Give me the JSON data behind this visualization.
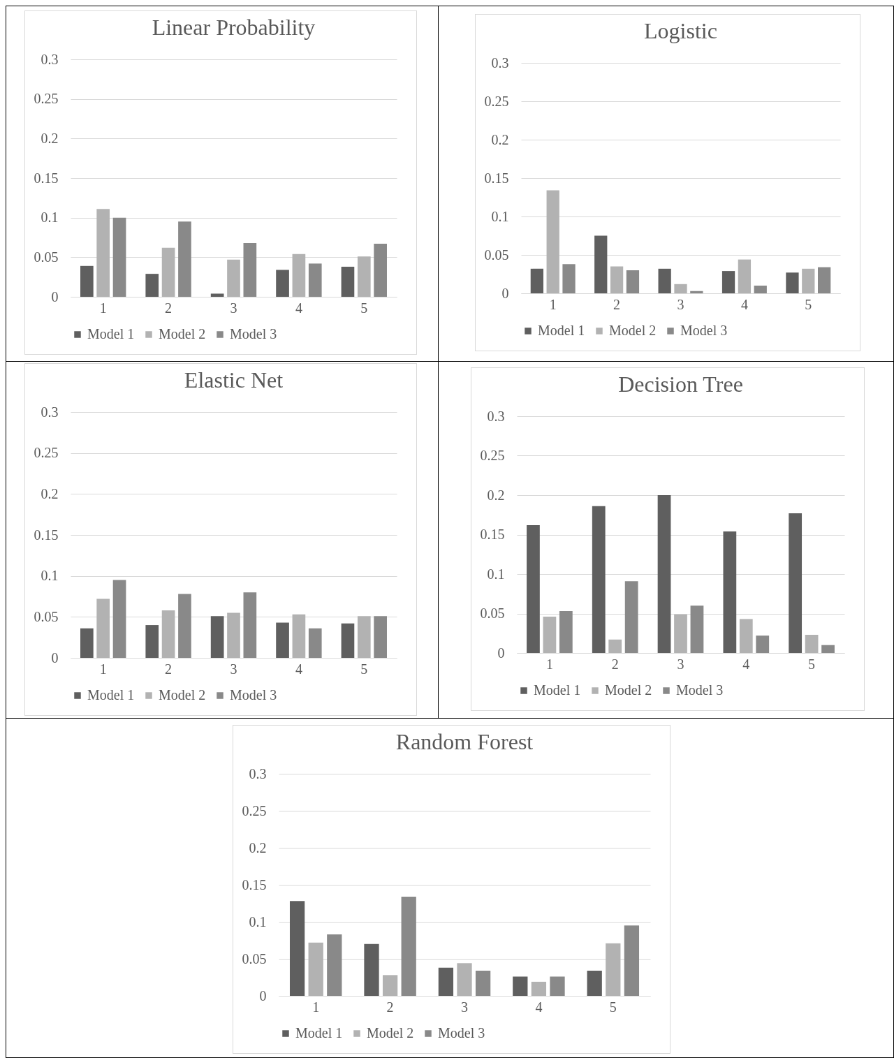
{
  "chart_data": [
    {
      "type": "bar",
      "title": "Linear Probability",
      "categories": [
        "1",
        "2",
        "3",
        "4",
        "5"
      ],
      "series": [
        {
          "name": "Model 1",
          "color": "#5f5f5f",
          "values": [
            0.039,
            0.029,
            0.004,
            0.034,
            0.038
          ]
        },
        {
          "name": "Model 2",
          "color": "#b2b2b2",
          "values": [
            0.111,
            0.062,
            0.047,
            0.054,
            0.051
          ]
        },
        {
          "name": "Model 3",
          "color": "#898989",
          "values": [
            0.1,
            0.095,
            0.068,
            0.042,
            0.067
          ]
        }
      ],
      "ylim": [
        0,
        0.3
      ],
      "yticks": [
        0,
        0.05,
        0.1,
        0.15,
        0.2,
        0.25,
        0.3
      ],
      "grid": "y",
      "legend": "bottom"
    },
    {
      "type": "bar",
      "title": "Logistic",
      "categories": [
        "1",
        "2",
        "3",
        "4",
        "5"
      ],
      "series": [
        {
          "name": "Model 1",
          "color": "#5f5f5f",
          "values": [
            0.032,
            0.075,
            0.032,
            0.029,
            0.027
          ]
        },
        {
          "name": "Model 2",
          "color": "#b2b2b2",
          "values": [
            0.134,
            0.035,
            0.012,
            0.044,
            0.032
          ]
        },
        {
          "name": "Model 3",
          "color": "#898989",
          "values": [
            0.038,
            0.03,
            0.003,
            0.01,
            0.034
          ]
        }
      ],
      "ylim": [
        0,
        0.3
      ],
      "yticks": [
        0,
        0.05,
        0.1,
        0.15,
        0.2,
        0.25,
        0.3
      ],
      "grid": "y",
      "legend": "bottom"
    },
    {
      "type": "bar",
      "title": "Elastic Net",
      "categories": [
        "1",
        "2",
        "3",
        "4",
        "5"
      ],
      "series": [
        {
          "name": "Model 1",
          "color": "#5f5f5f",
          "values": [
            0.036,
            0.04,
            0.051,
            0.043,
            0.042
          ]
        },
        {
          "name": "Model 2",
          "color": "#b2b2b2",
          "values": [
            0.072,
            0.058,
            0.055,
            0.053,
            0.051
          ]
        },
        {
          "name": "Model 3",
          "color": "#898989",
          "values": [
            0.095,
            0.078,
            0.08,
            0.036,
            0.051
          ]
        }
      ],
      "ylim": [
        0,
        0.3
      ],
      "yticks": [
        0,
        0.05,
        0.1,
        0.15,
        0.2,
        0.25,
        0.3
      ],
      "grid": "y",
      "legend": "bottom"
    },
    {
      "type": "bar",
      "title": "Decision Tree",
      "categories": [
        "1",
        "2",
        "3",
        "4",
        "5"
      ],
      "series": [
        {
          "name": "Model 1",
          "color": "#5f5f5f",
          "values": [
            0.162,
            0.186,
            0.2,
            0.154,
            0.177
          ]
        },
        {
          "name": "Model 2",
          "color": "#b2b2b2",
          "values": [
            0.046,
            0.017,
            0.049,
            0.043,
            0.023
          ]
        },
        {
          "name": "Model 3",
          "color": "#898989",
          "values": [
            0.053,
            0.091,
            0.06,
            0.022,
            0.01
          ]
        }
      ],
      "ylim": [
        0,
        0.3
      ],
      "yticks": [
        0,
        0.05,
        0.1,
        0.15,
        0.2,
        0.25,
        0.3
      ],
      "grid": "y",
      "legend": "bottom"
    },
    {
      "type": "bar",
      "title": "Random Forest",
      "categories": [
        "1",
        "2",
        "3",
        "4",
        "5"
      ],
      "series": [
        {
          "name": "Model 1",
          "color": "#5f5f5f",
          "values": [
            0.128,
            0.07,
            0.038,
            0.026,
            0.034
          ]
        },
        {
          "name": "Model 2",
          "color": "#b2b2b2",
          "values": [
            0.072,
            0.028,
            0.044,
            0.019,
            0.071
          ]
        },
        {
          "name": "Model 3",
          "color": "#898989",
          "values": [
            0.083,
            0.134,
            0.034,
            0.026,
            0.095
          ]
        }
      ],
      "ylim": [
        0,
        0.3
      ],
      "yticks": [
        0,
        0.05,
        0.1,
        0.15,
        0.2,
        0.25,
        0.3
      ],
      "grid": "y",
      "legend": "bottom"
    }
  ]
}
